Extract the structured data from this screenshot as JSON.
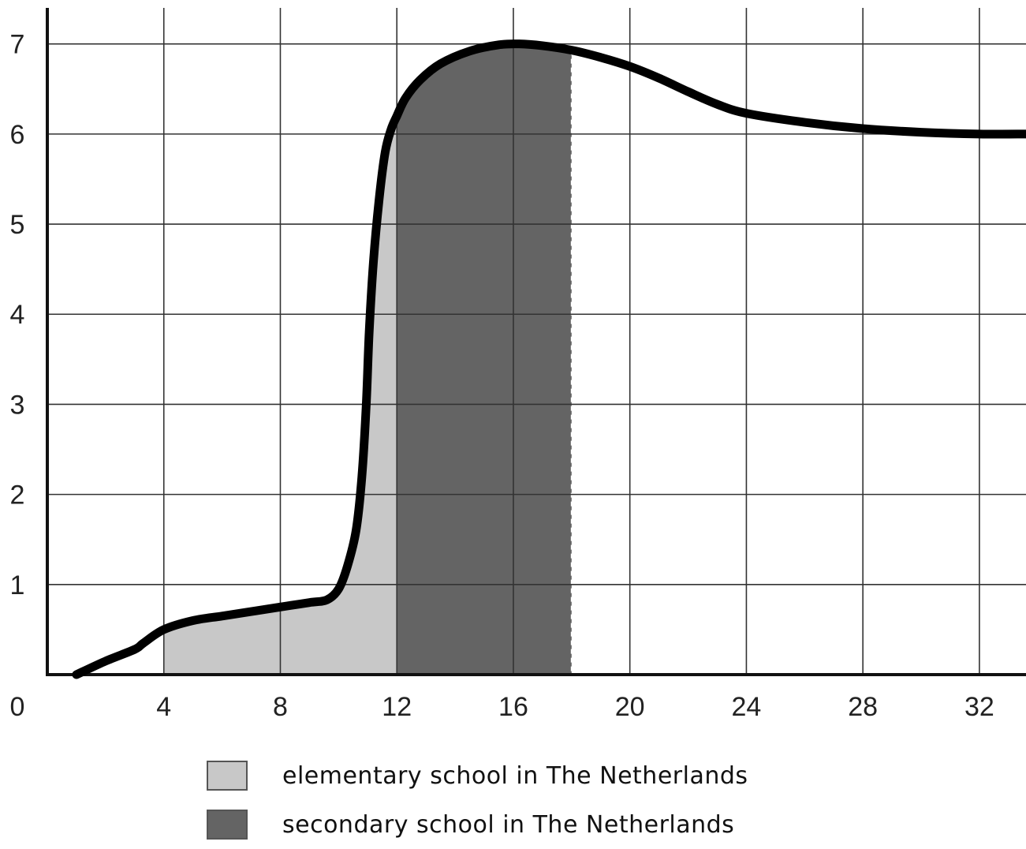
{
  "chart_data": {
    "type": "line",
    "title": "",
    "xlabel": "",
    "ylabel": "",
    "xlim": [
      0,
      33.6
    ],
    "ylim": [
      0,
      7.4
    ],
    "x_ticks": [
      4,
      8,
      12,
      16,
      20,
      24,
      28,
      32
    ],
    "y_ticks": [
      1,
      2,
      3,
      4,
      5,
      6,
      7
    ],
    "origin_label": "0",
    "grid": true,
    "series": [
      {
        "x": [
          1.0,
          2.0,
          3.0,
          3.3,
          4.0,
          5.0,
          6.0,
          7.0,
          8.0,
          9.0,
          9.6,
          10.0,
          10.3,
          10.6,
          10.8,
          10.95,
          11.05,
          11.2,
          11.4,
          11.6,
          11.8,
          12.0,
          12.3,
          12.8,
          13.5,
          14.5,
          15.5,
          16.2,
          17.0,
          18.0,
          19.0,
          20.0,
          21.0,
          22.0,
          23.0,
          24.0,
          26.0,
          28.0,
          30.0,
          32.0,
          33.6
        ],
        "values": [
          0.0,
          0.15,
          0.28,
          0.35,
          0.5,
          0.6,
          0.65,
          0.7,
          0.75,
          0.8,
          0.83,
          0.95,
          1.2,
          1.6,
          2.2,
          3.0,
          3.8,
          4.6,
          5.3,
          5.8,
          6.05,
          6.2,
          6.4,
          6.6,
          6.78,
          6.92,
          6.99,
          7.0,
          6.98,
          6.93,
          6.85,
          6.75,
          6.62,
          6.47,
          6.33,
          6.23,
          6.13,
          6.06,
          6.02,
          6.0,
          6.0
        ]
      }
    ],
    "shaded_regions": [
      {
        "label": "elementary school in The Netherlands",
        "x_start": 4,
        "x_end": 12,
        "color": "#c8c8c8"
      },
      {
        "label": "secondary school in The Netherlands",
        "x_start": 12,
        "x_end": 18,
        "color": "#646464"
      }
    ],
    "legend": [
      {
        "label": "elementary school in The Netherlands",
        "color": "#c8c8c8"
      },
      {
        "label": "secondary school in The Netherlands",
        "color": "#646464"
      }
    ],
    "legend_position": "bottom"
  }
}
